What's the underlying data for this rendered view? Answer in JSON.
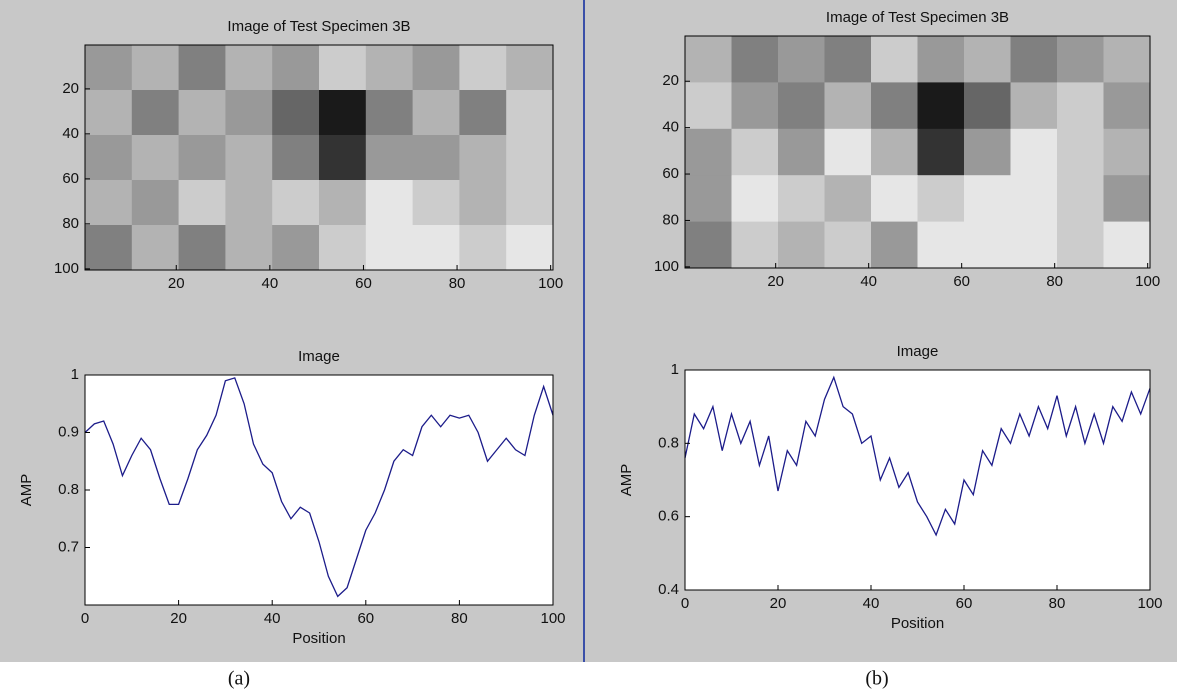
{
  "chart_data": [
    {
      "type": "heatmap",
      "title": "Image of Test Specimen 3B",
      "xlim": [
        0.5,
        100.5
      ],
      "ylim": [
        0.5,
        100.5
      ],
      "yreverse": true,
      "xticks": [
        20,
        40,
        60,
        80,
        100
      ],
      "yticks": [
        20,
        40,
        60,
        80,
        100
      ],
      "z": [
        [
          0.6,
          0.7,
          0.5,
          0.7,
          0.6,
          0.8,
          0.7,
          0.6,
          0.8,
          0.7
        ],
        [
          0.7,
          0.5,
          0.7,
          0.6,
          0.4,
          0.1,
          0.5,
          0.7,
          0.5,
          0.8
        ],
        [
          0.6,
          0.7,
          0.6,
          0.7,
          0.5,
          0.2,
          0.6,
          0.6,
          0.7,
          0.8
        ],
        [
          0.7,
          0.6,
          0.8,
          0.7,
          0.8,
          0.7,
          0.9,
          0.8,
          0.7,
          0.8
        ],
        [
          0.5,
          0.7,
          0.5,
          0.7,
          0.6,
          0.8,
          0.9,
          0.9,
          0.8,
          0.9
        ]
      ]
    },
    {
      "type": "line",
      "title": "Image",
      "xlabel": "Position",
      "ylabel": "AMP",
      "xlim": [
        0,
        100
      ],
      "ylim": [
        0.6,
        1
      ],
      "xticks": [
        0,
        20,
        40,
        60,
        80,
        100
      ],
      "yticks": [
        0.7,
        0.8,
        0.9,
        1
      ],
      "color": "#1c1c8a",
      "x": [
        0,
        2,
        4,
        6,
        8,
        10,
        12,
        14,
        16,
        18,
        20,
        22,
        24,
        26,
        28,
        30,
        32,
        34,
        36,
        38,
        40,
        42,
        44,
        46,
        48,
        50,
        52,
        54,
        56,
        58,
        60,
        62,
        64,
        66,
        68,
        70,
        72,
        74,
        76,
        78,
        80,
        82,
        84,
        86,
        88,
        90,
        92,
        94,
        96,
        98,
        100
      ],
      "values": [
        0.9,
        0.915,
        0.92,
        0.88,
        0.825,
        0.86,
        0.89,
        0.87,
        0.82,
        0.775,
        0.775,
        0.82,
        0.87,
        0.895,
        0.93,
        0.99,
        0.995,
        0.95,
        0.88,
        0.845,
        0.83,
        0.78,
        0.75,
        0.77,
        0.76,
        0.71,
        0.65,
        0.615,
        0.63,
        0.68,
        0.73,
        0.76,
        0.8,
        0.85,
        0.87,
        0.86,
        0.91,
        0.93,
        0.91,
        0.93,
        0.925,
        0.93,
        0.9,
        0.85,
        0.87,
        0.89,
        0.87,
        0.86,
        0.93,
        0.98,
        0.93
      ]
    },
    {
      "type": "heatmap",
      "title": "Image of Test Specimen 3B",
      "xlim": [
        0.5,
        100.5
      ],
      "ylim": [
        0.5,
        100.5
      ],
      "yreverse": true,
      "xticks": [
        20,
        40,
        60,
        80,
        100
      ],
      "yticks": [
        20,
        40,
        60,
        80,
        100
      ],
      "z": [
        [
          0.7,
          0.5,
          0.6,
          0.5,
          0.8,
          0.6,
          0.7,
          0.5,
          0.6,
          0.7
        ],
        [
          0.8,
          0.6,
          0.5,
          0.7,
          0.5,
          0.1,
          0.4,
          0.7,
          0.8,
          0.6
        ],
        [
          0.6,
          0.8,
          0.6,
          0.9,
          0.7,
          0.2,
          0.6,
          0.9,
          0.8,
          0.7
        ],
        [
          0.6,
          0.9,
          0.8,
          0.7,
          0.9,
          0.8,
          0.9,
          0.9,
          0.8,
          0.6
        ],
        [
          0.5,
          0.8,
          0.7,
          0.8,
          0.6,
          0.9,
          0.9,
          0.9,
          0.8,
          0.9
        ]
      ]
    },
    {
      "type": "line",
      "title": "Image",
      "xlabel": "Position",
      "ylabel": "AMP",
      "xlim": [
        0,
        100
      ],
      "ylim": [
        0.4,
        1
      ],
      "xticks": [
        0,
        20,
        40,
        60,
        80,
        100
      ],
      "yticks": [
        0.4,
        0.6,
        0.8,
        1
      ],
      "color": "#1c1c8a",
      "x": [
        0,
        2,
        4,
        6,
        8,
        10,
        12,
        14,
        16,
        18,
        20,
        22,
        24,
        26,
        28,
        30,
        32,
        34,
        36,
        38,
        40,
        42,
        44,
        46,
        48,
        50,
        52,
        54,
        56,
        58,
        60,
        62,
        64,
        66,
        68,
        70,
        72,
        74,
        76,
        78,
        80,
        82,
        84,
        86,
        88,
        90,
        92,
        94,
        96,
        98,
        100
      ],
      "values": [
        0.76,
        0.88,
        0.84,
        0.9,
        0.78,
        0.88,
        0.8,
        0.86,
        0.74,
        0.82,
        0.67,
        0.78,
        0.74,
        0.86,
        0.82,
        0.92,
        0.98,
        0.9,
        0.88,
        0.8,
        0.82,
        0.7,
        0.76,
        0.68,
        0.72,
        0.64,
        0.6,
        0.55,
        0.62,
        0.58,
        0.7,
        0.66,
        0.78,
        0.74,
        0.84,
        0.8,
        0.88,
        0.82,
        0.9,
        0.84,
        0.93,
        0.82,
        0.9,
        0.8,
        0.88,
        0.8,
        0.9,
        0.86,
        0.94,
        0.88,
        0.95
      ]
    }
  ],
  "captions": [
    "(a)",
    "(b)"
  ]
}
